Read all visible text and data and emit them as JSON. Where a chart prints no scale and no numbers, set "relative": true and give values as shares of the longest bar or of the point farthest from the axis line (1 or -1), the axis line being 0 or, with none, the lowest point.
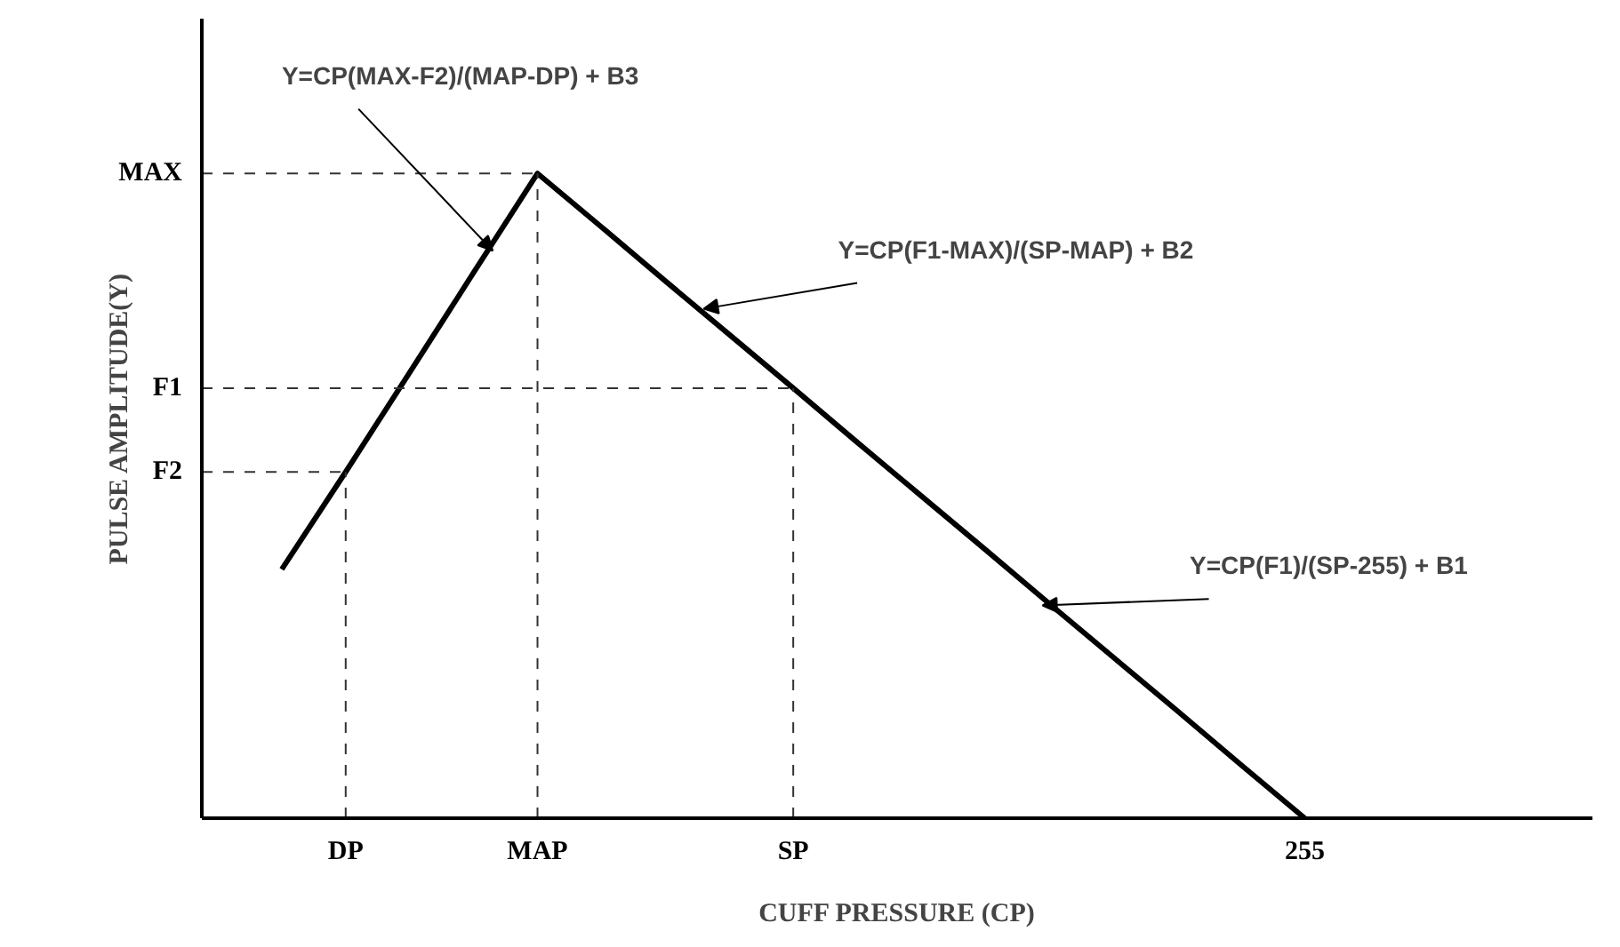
{
  "chart_data": {
    "type": "line",
    "relative": true,
    "xlabel": "CUFF PRESSURE (CP)",
    "ylabel": "PULSE AMPLITUDE(Y)",
    "categories": [
      null,
      "DP",
      null,
      null,
      "MAP",
      null,
      null,
      null,
      "SP",
      null,
      null,
      null,
      null,
      null,
      null,
      null,
      "255"
    ],
    "series": [
      {
        "color": "#000000",
        "values": [
          0.386,
          0.537,
          0.691,
          0.846,
          1,
          0.917,
          0.833,
          0.75,
          0.667,
          0.583,
          0.5,
          0.417,
          0.333,
          0.25,
          0.167,
          0.083,
          0
        ]
      }
    ],
    "ref_lines": [
      {
        "axis": "y",
        "value": 1,
        "label": "MAX",
        "line_style": "dashed"
      },
      {
        "axis": "y",
        "value": 0.667,
        "label": "F1",
        "line_style": "dashed"
      },
      {
        "axis": "y",
        "value": 0.537,
        "label": "F2",
        "line_style": "dashed"
      }
    ],
    "annotations": [
      "Y=CP(MAX-F2)/(MAP-DP) + B3",
      "Y=CP(F1-MAX)/(SP-MAP) + B2",
      "Y=CP(F1)/(SP-255) + B1"
    ],
    "marker": "none",
    "line_style": "solid"
  }
}
